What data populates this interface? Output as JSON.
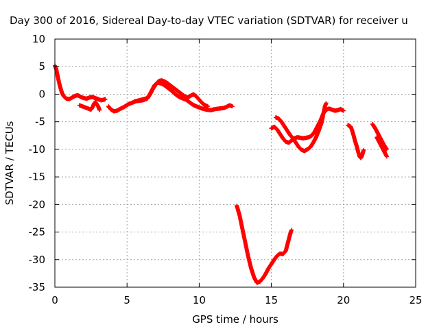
{
  "chart_data": {
    "type": "scatter",
    "title": "Day 300 of 2016, Sidereal Day-to-day VTEC variation (SDTVAR) for receiver u",
    "xlabel": "GPS time / hours",
    "ylabel": "SDTVAR / TECUs",
    "xlim": [
      0,
      25
    ],
    "ylim": [
      -35,
      10
    ],
    "xticks": [
      0,
      5,
      10,
      15,
      20,
      25
    ],
    "yticks": [
      10,
      5,
      0,
      -5,
      -10,
      -15,
      -20,
      -25,
      -30,
      -35
    ],
    "grid": true,
    "legend": "none",
    "marker": "plus",
    "color": "#ff0000",
    "series": [
      {
        "segments": [
          [
            [
              0.0,
              5.2
            ],
            [
              0.1,
              4.5
            ],
            [
              0.2,
              3.2
            ],
            [
              0.3,
              2.0
            ],
            [
              0.4,
              1.0
            ],
            [
              0.5,
              0.2
            ],
            [
              0.6,
              -0.3
            ],
            [
              0.7,
              -0.6
            ],
            [
              0.8,
              -0.8
            ],
            [
              1.0,
              -0.9
            ],
            [
              1.2,
              -0.6
            ],
            [
              1.4,
              -0.3
            ],
            [
              1.6,
              -0.2
            ],
            [
              1.8,
              -0.5
            ],
            [
              2.0,
              -0.7
            ],
            [
              2.2,
              -0.8
            ],
            [
              2.4,
              -0.6
            ],
            [
              2.6,
              -0.5
            ],
            [
              2.8,
              -0.7
            ],
            [
              3.0,
              -0.9
            ],
            [
              3.2,
              -1.1
            ],
            [
              3.4,
              -1.0
            ],
            [
              3.5,
              -0.9
            ]
          ],
          [
            [
              1.7,
              -2.0
            ],
            [
              1.9,
              -2.2
            ],
            [
              2.1,
              -2.4
            ],
            [
              2.3,
              -2.6
            ],
            [
              2.5,
              -2.8
            ],
            [
              2.6,
              -2.4
            ],
            [
              2.7,
              -1.8
            ],
            [
              2.8,
              -1.4
            ],
            [
              2.9,
              -1.8
            ],
            [
              3.0,
              -2.2
            ],
            [
              3.1,
              -2.9
            ]
          ],
          [
            [
              3.7,
              -2.2
            ],
            [
              3.9,
              -2.8
            ],
            [
              4.1,
              -3.1
            ],
            [
              4.3,
              -3.0
            ],
            [
              4.5,
              -2.7
            ],
            [
              4.8,
              -2.3
            ],
            [
              5.1,
              -1.8
            ],
            [
              5.4,
              -1.5
            ],
            [
              5.7,
              -1.2
            ],
            [
              6.0,
              -1.0
            ],
            [
              6.3,
              -0.8
            ],
            [
              6.5,
              -0.4
            ],
            [
              6.7,
              0.6
            ],
            [
              6.9,
              1.6
            ],
            [
              7.1,
              2.1
            ],
            [
              7.3,
              2.0
            ],
            [
              7.5,
              1.8
            ],
            [
              7.7,
              1.4
            ],
            [
              7.9,
              1.0
            ],
            [
              8.1,
              0.6
            ],
            [
              8.3,
              0.1
            ],
            [
              8.5,
              -0.3
            ],
            [
              8.7,
              -0.6
            ],
            [
              8.9,
              -0.8
            ],
            [
              9.1,
              -1.0
            ],
            [
              9.3,
              -1.4
            ],
            [
              9.5,
              -1.8
            ],
            [
              9.7,
              -2.1
            ],
            [
              9.9,
              -2.3
            ],
            [
              10.2,
              -2.6
            ],
            [
              10.5,
              -2.8
            ],
            [
              10.8,
              -2.9
            ],
            [
              11.1,
              -2.7
            ],
            [
              11.4,
              -2.6
            ],
            [
              11.7,
              -2.5
            ],
            [
              11.9,
              -2.3
            ],
            [
              12.1,
              -2.0
            ],
            [
              12.3,
              -2.2
            ]
          ],
          [
            [
              5.5,
              -1.3
            ],
            [
              5.8,
              -1.2
            ],
            [
              6.1,
              -1.1
            ],
            [
              6.4,
              -0.8
            ],
            [
              6.6,
              0.0
            ],
            [
              6.8,
              1.0
            ],
            [
              7.0,
              1.8
            ],
            [
              7.2,
              2.4
            ],
            [
              7.4,
              2.5
            ],
            [
              7.6,
              2.3
            ],
            [
              7.8,
              2.0
            ],
            [
              8.0,
              1.6
            ],
            [
              8.2,
              1.2
            ],
            [
              8.4,
              0.8
            ],
            [
              8.6,
              0.4
            ],
            [
              8.8,
              0.0
            ],
            [
              9.0,
              -0.4
            ],
            [
              9.2,
              -0.6
            ],
            [
              9.4,
              -0.3
            ],
            [
              9.6,
              0.0
            ],
            [
              9.8,
              -0.4
            ],
            [
              10.0,
              -1.0
            ],
            [
              10.2,
              -1.6
            ],
            [
              10.4,
              -2.0
            ],
            [
              10.6,
              -2.2
            ]
          ],
          [
            [
              12.6,
              -20.2
            ],
            [
              12.8,
              -22.0
            ],
            [
              13.0,
              -24.5
            ],
            [
              13.2,
              -27.0
            ],
            [
              13.4,
              -29.5
            ],
            [
              13.6,
              -31.6
            ],
            [
              13.8,
              -33.2
            ],
            [
              14.0,
              -34.2
            ],
            [
              14.2,
              -34.0
            ],
            [
              14.4,
              -33.4
            ],
            [
              14.6,
              -32.6
            ],
            [
              14.8,
              -31.6
            ],
            [
              15.0,
              -30.8
            ],
            [
              15.2,
              -30.0
            ],
            [
              15.4,
              -29.3
            ],
            [
              15.6,
              -28.9
            ],
            [
              15.8,
              -29.0
            ],
            [
              16.0,
              -28.4
            ],
            [
              16.1,
              -27.4
            ],
            [
              16.2,
              -26.4
            ],
            [
              16.3,
              -25.4
            ],
            [
              16.4,
              -24.6
            ]
          ],
          [
            [
              15.0,
              -6.2
            ],
            [
              15.2,
              -5.9
            ],
            [
              15.4,
              -6.4
            ],
            [
              15.6,
              -7.2
            ],
            [
              15.8,
              -8.0
            ],
            [
              16.0,
              -8.6
            ],
            [
              16.2,
              -8.8
            ],
            [
              16.4,
              -8.4
            ],
            [
              16.6,
              -8.0
            ],
            [
              16.8,
              -7.8
            ],
            [
              17.0,
              -7.9
            ],
            [
              17.2,
              -8.0
            ],
            [
              17.4,
              -7.9
            ],
            [
              17.6,
              -7.8
            ],
            [
              17.8,
              -7.5
            ],
            [
              18.0,
              -6.8
            ],
            [
              18.2,
              -5.8
            ],
            [
              18.4,
              -4.8
            ],
            [
              18.6,
              -3.5
            ],
            [
              18.8,
              -2.8
            ],
            [
              19.0,
              -2.6
            ],
            [
              19.2,
              -2.8
            ],
            [
              19.4,
              -3.0
            ],
            [
              19.6,
              -2.9
            ],
            [
              19.8,
              -2.7
            ],
            [
              20.0,
              -3.0
            ]
          ],
          [
            [
              15.3,
              -4.2
            ],
            [
              15.5,
              -4.4
            ],
            [
              15.7,
              -5.0
            ],
            [
              15.9,
              -5.8
            ],
            [
              16.1,
              -6.6
            ],
            [
              16.3,
              -7.4
            ],
            [
              16.5,
              -8.0
            ],
            [
              16.7,
              -8.8
            ],
            [
              16.9,
              -9.6
            ],
            [
              17.1,
              -10.1
            ],
            [
              17.3,
              -10.3
            ],
            [
              17.5,
              -10.0
            ],
            [
              17.7,
              -9.6
            ],
            [
              17.9,
              -8.8
            ],
            [
              18.1,
              -7.8
            ],
            [
              18.3,
              -6.5
            ],
            [
              18.5,
              -5.0
            ],
            [
              18.6,
              -3.6
            ],
            [
              18.7,
              -2.3
            ],
            [
              18.8,
              -1.6
            ]
          ],
          [
            [
              20.3,
              -5.6
            ],
            [
              20.5,
              -5.9
            ],
            [
              20.6,
              -6.6
            ],
            [
              20.7,
              -7.5
            ],
            [
              20.8,
              -8.5
            ],
            [
              20.9,
              -9.3
            ],
            [
              21.0,
              -10.3
            ],
            [
              21.1,
              -11.2
            ],
            [
              21.2,
              -11.6
            ],
            [
              21.3,
              -11.0
            ],
            [
              21.4,
              -10.1
            ]
          ],
          [
            [
              22.0,
              -5.4
            ],
            [
              22.2,
              -6.2
            ],
            [
              22.4,
              -7.2
            ],
            [
              22.6,
              -8.2
            ],
            [
              22.8,
              -9.2
            ],
            [
              23.0,
              -10.0
            ]
          ],
          [
            [
              22.3,
              -7.8
            ],
            [
              22.5,
              -8.8
            ],
            [
              22.7,
              -9.8
            ],
            [
              22.9,
              -10.8
            ],
            [
              23.0,
              -11.3
            ]
          ]
        ]
      }
    ]
  }
}
